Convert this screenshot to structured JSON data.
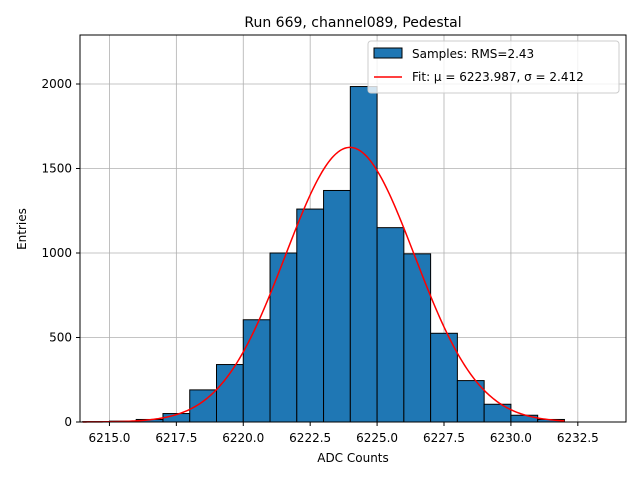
{
  "chart_data": {
    "type": "bar",
    "title": "Run 669, channel089, Pedestal",
    "xlabel": "ADC Counts",
    "ylabel": "Entries",
    "xlim": [
      6213.9,
      6234.3
    ],
    "ylim": [
      0,
      2290
    ],
    "grid": true,
    "legend_position": "top-right",
    "x_ticks": [
      6215.0,
      6217.5,
      6220.0,
      6222.5,
      6225.0,
      6227.5,
      6230.0,
      6232.5
    ],
    "x_tick_labels": [
      "6215.0",
      "6217.5",
      "6220.0",
      "6222.5",
      "6225.0",
      "6227.5",
      "6230.0",
      "6232.5"
    ],
    "y_ticks": [
      0,
      500,
      1000,
      1500,
      2000
    ],
    "y_tick_labels": [
      "0",
      "500",
      "1000",
      "1500",
      "2000"
    ],
    "bin_edges": [
      6214,
      6215,
      6216,
      6217,
      6218,
      6219,
      6220,
      6221,
      6222,
      6223,
      6224,
      6225,
      6226,
      6227,
      6228,
      6229,
      6230,
      6231,
      6232
    ],
    "counts": [
      2,
      5,
      15,
      50,
      190,
      340,
      605,
      1000,
      1260,
      1370,
      1985,
      1150,
      995,
      525,
      245,
      105,
      40,
      15
    ],
    "fit": {
      "mu": 6223.987,
      "sigma": 2.412,
      "amplitude": 1625,
      "x_range": [
        6214,
        6232
      ]
    },
    "series": [
      {
        "name": "Samples: RMS=2.43",
        "kind": "histogram",
        "color": "#1f77b4"
      },
      {
        "name": "Fit: μ = 6223.987, σ = 2.412",
        "kind": "line",
        "color": "#ff0000"
      }
    ]
  }
}
